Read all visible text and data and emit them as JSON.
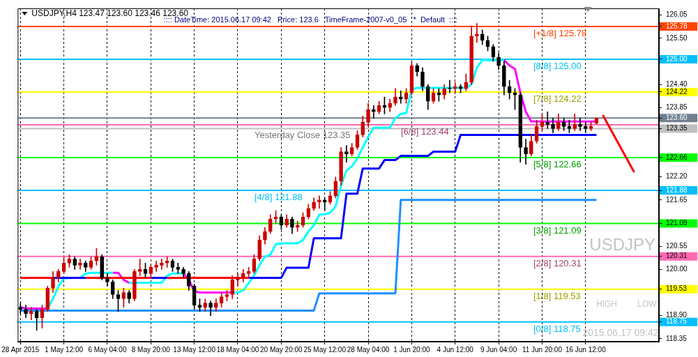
{
  "chart_data": {
    "type": "candlestick",
    "title": "USDJPY,H4 123.47 123.60 123.46 123.60",
    "subtitle": ":::: DateTime: 2015.06.17 09:42   Price: 123.6   TimeFrame-2007-v0_05   *  Default  ::::",
    "categories": [
      "28 Apr 2015",
      null,
      null,
      null,
      null,
      null,
      null,
      null,
      "1 May 12:00",
      null,
      null,
      null,
      null,
      null,
      null,
      null,
      "6 May 04:00",
      null,
      null,
      null,
      null,
      null,
      null,
      null,
      "8 May 20:00",
      null,
      null,
      null,
      null,
      null,
      null,
      null,
      "13 May 12:00",
      null,
      null,
      null,
      null,
      null,
      null,
      null,
      "18 May 04:00",
      null,
      null,
      null,
      null,
      null,
      null,
      null,
      "20 May 20:00",
      null,
      null,
      null,
      null,
      null,
      null,
      null,
      "25 May 12:00",
      null,
      null,
      null,
      null,
      null,
      null,
      null,
      "28 May 04:00",
      null,
      null,
      null,
      null,
      null,
      null,
      null,
      "1 Jun 20:00",
      null,
      null,
      null,
      null,
      null,
      null,
      null,
      "4 Jun 12:00",
      null,
      null,
      null,
      null,
      null,
      null,
      null,
      "9 Jun 04:00",
      null,
      null,
      null,
      null,
      null,
      null,
      null,
      "11 Jun 20:00",
      null,
      null,
      null,
      null,
      null,
      null,
      null,
      "16 Jun 12:00",
      null,
      null,
      null,
      null,
      null,
      null,
      null,
      null,
      null,
      null,
      null,
      null,
      null
    ],
    "ohlc": [
      [
        119.1,
        119.2,
        118.95,
        119.05
      ],
      [
        119.05,
        119.15,
        118.85,
        118.95
      ],
      [
        118.95,
        119.1,
        118.8,
        119.0
      ],
      [
        119.0,
        119.05,
        118.55,
        118.85
      ],
      [
        118.85,
        119.15,
        118.6,
        119.05
      ],
      [
        119.05,
        119.6,
        119.0,
        119.55
      ],
      [
        119.55,
        119.95,
        119.45,
        119.8
      ],
      [
        119.8,
        120.0,
        119.7,
        119.95
      ],
      [
        119.95,
        120.3,
        119.9,
        120.15
      ],
      [
        120.15,
        120.35,
        120.05,
        120.25
      ],
      [
        120.25,
        120.3,
        120.0,
        120.1
      ],
      [
        120.1,
        120.25,
        120.0,
        120.15
      ],
      [
        120.15,
        120.2,
        119.95,
        120.05
      ],
      [
        120.05,
        120.3,
        120.0,
        120.2
      ],
      [
        120.2,
        120.5,
        120.1,
        120.3
      ],
      [
        120.3,
        120.35,
        119.75,
        119.8
      ],
      [
        119.8,
        119.9,
        119.6,
        119.7
      ],
      [
        119.7,
        119.75,
        119.3,
        119.4
      ],
      [
        119.4,
        119.5,
        119.0,
        119.3
      ],
      [
        119.3,
        119.55,
        119.1,
        119.45
      ],
      [
        119.45,
        119.5,
        119.2,
        119.3
      ],
      [
        119.3,
        120.0,
        119.25,
        119.95
      ],
      [
        119.95,
        120.25,
        119.85,
        120.0
      ],
      [
        120.0,
        120.15,
        119.8,
        119.9
      ],
      [
        119.9,
        120.1,
        119.8,
        120.05
      ],
      [
        120.05,
        120.2,
        119.95,
        120.1
      ],
      [
        120.1,
        120.25,
        120.0,
        120.15
      ],
      [
        120.15,
        120.3,
        120.05,
        120.2
      ],
      [
        120.2,
        120.25,
        119.95,
        120.05
      ],
      [
        120.05,
        120.15,
        119.9,
        120.0
      ],
      [
        120.0,
        120.05,
        119.8,
        119.9
      ],
      [
        119.9,
        119.95,
        119.5,
        119.6
      ],
      [
        119.6,
        119.65,
        119.05,
        119.15
      ],
      [
        119.15,
        119.3,
        119.0,
        119.1
      ],
      [
        119.1,
        119.3,
        119.0,
        119.2
      ],
      [
        119.2,
        119.25,
        118.9,
        119.1
      ],
      [
        119.1,
        119.3,
        119.0,
        119.2
      ],
      [
        119.2,
        119.45,
        119.1,
        119.35
      ],
      [
        119.35,
        119.5,
        119.25,
        119.4
      ],
      [
        119.4,
        119.85,
        119.3,
        119.75
      ],
      [
        119.75,
        119.9,
        119.6,
        119.8
      ],
      [
        119.8,
        120.0,
        119.7,
        119.9
      ],
      [
        119.9,
        120.05,
        119.8,
        119.95
      ],
      [
        119.95,
        120.35,
        119.9,
        120.25
      ],
      [
        120.25,
        120.8,
        120.2,
        120.7
      ],
      [
        120.7,
        121.0,
        120.6,
        120.9
      ],
      [
        120.9,
        121.3,
        120.85,
        121.2
      ],
      [
        121.2,
        121.4,
        121.1,
        121.25
      ],
      [
        121.25,
        121.3,
        120.95,
        121.05
      ],
      [
        121.05,
        121.3,
        121.0,
        121.2
      ],
      [
        121.2,
        121.25,
        120.85,
        121.0
      ],
      [
        121.0,
        121.15,
        120.9,
        121.05
      ],
      [
        121.05,
        121.35,
        121.0,
        121.25
      ],
      [
        121.25,
        121.55,
        121.2,
        121.45
      ],
      [
        121.45,
        121.7,
        121.4,
        121.6
      ],
      [
        121.6,
        121.75,
        121.45,
        121.65
      ],
      [
        121.65,
        121.7,
        121.4,
        121.6
      ],
      [
        121.6,
        121.85,
        121.55,
        121.75
      ],
      [
        121.75,
        122.2,
        121.7,
        122.1
      ],
      [
        122.1,
        122.9,
        122.0,
        122.8
      ],
      [
        122.8,
        122.95,
        122.55,
        122.75
      ],
      [
        122.75,
        123.0,
        122.7,
        122.9
      ],
      [
        122.9,
        123.3,
        122.85,
        123.2
      ],
      [
        123.2,
        123.65,
        123.15,
        123.5
      ],
      [
        123.5,
        123.95,
        123.4,
        123.8
      ],
      [
        123.8,
        123.9,
        123.6,
        123.75
      ],
      [
        123.75,
        124.0,
        123.7,
        123.9
      ],
      [
        123.9,
        124.1,
        123.7,
        123.85
      ],
      [
        123.85,
        124.05,
        123.75,
        123.95
      ],
      [
        123.95,
        124.3,
        123.9,
        124.1
      ],
      [
        124.1,
        124.25,
        123.95,
        124.05
      ],
      [
        124.05,
        124.3,
        123.95,
        124.2
      ],
      [
        124.2,
        124.95,
        124.15,
        124.85
      ],
      [
        124.85,
        124.9,
        124.6,
        124.7
      ],
      [
        124.7,
        124.8,
        124.25,
        124.35
      ],
      [
        124.35,
        124.4,
        123.8,
        124.0
      ],
      [
        124.0,
        124.3,
        123.95,
        124.2
      ],
      [
        124.2,
        124.3,
        124.0,
        124.15
      ],
      [
        124.15,
        124.4,
        124.05,
        124.3
      ],
      [
        124.3,
        124.5,
        124.2,
        124.3
      ],
      [
        124.3,
        124.45,
        124.2,
        124.35
      ],
      [
        124.35,
        124.4,
        124.2,
        124.3
      ],
      [
        124.3,
        124.65,
        124.25,
        124.45
      ],
      [
        124.45,
        125.8,
        124.4,
        125.55
      ],
      [
        125.55,
        125.85,
        125.4,
        125.6
      ],
      [
        125.6,
        125.7,
        125.35,
        125.45
      ],
      [
        125.45,
        125.55,
        125.2,
        125.3
      ],
      [
        125.3,
        125.35,
        124.95,
        125.05
      ],
      [
        125.05,
        125.15,
        124.75,
        124.85
      ],
      [
        124.85,
        124.95,
        124.15,
        124.35
      ],
      [
        124.35,
        124.5,
        124.05,
        124.2
      ],
      [
        124.2,
        124.3,
        123.8,
        124.15
      ],
      [
        124.15,
        124.2,
        122.55,
        122.9
      ],
      [
        122.9,
        123.1,
        122.5,
        122.75
      ],
      [
        122.75,
        123.2,
        122.7,
        123.05
      ],
      [
        123.05,
        123.55,
        123.0,
        123.4
      ],
      [
        123.4,
        123.7,
        123.3,
        123.5
      ],
      [
        123.5,
        123.75,
        123.35,
        123.45
      ],
      [
        123.45,
        123.6,
        123.25,
        123.35
      ],
      [
        123.35,
        123.7,
        123.3,
        123.5
      ],
      [
        123.5,
        123.6,
        123.3,
        123.4
      ],
      [
        123.4,
        123.55,
        123.25,
        123.35
      ],
      [
        123.35,
        123.7,
        123.3,
        123.45
      ],
      [
        123.45,
        123.6,
        123.3,
        123.4
      ],
      [
        123.4,
        123.5,
        123.25,
        123.35
      ],
      [
        123.35,
        123.5,
        123.3,
        123.4
      ],
      [
        123.47,
        123.6,
        123.46,
        123.6
      ],
      null,
      null,
      null,
      null,
      null,
      null,
      null,
      null,
      null,
      null,
      null
    ],
    "colors": [
      "#000000",
      "#000000",
      "#cc0000",
      "#000000",
      "#cc0000",
      "#cc0000",
      "#cc0000",
      "#cc0000",
      "#cc0000",
      "#cc0000",
      "#000000",
      "#cc0000",
      "#000000",
      "#cc0000",
      "#cc0000",
      "#000000",
      "#000000",
      "#000000",
      "#000000",
      "#cc0000",
      "#000000",
      "#cc0000",
      "#cc0000",
      "#000000",
      "#cc0000",
      "#cc0000",
      "#cc0000",
      "#cc0000",
      "#000000",
      "#000000",
      "#000000",
      "#000000",
      "#000000",
      "#000000",
      "#cc0000",
      "#000000",
      "#cc0000",
      "#cc0000",
      "#cc0000",
      "#cc0000",
      "#cc0000",
      "#cc0000",
      "#cc0000",
      "#cc0000",
      "#cc0000",
      "#cc0000",
      "#cc0000",
      "#cc0000",
      "#000000",
      "#cc0000",
      "#000000",
      "#cc0000",
      "#cc0000",
      "#cc0000",
      "#cc0000",
      "#cc0000",
      "#000000",
      "#cc0000",
      "#cc0000",
      "#cc0000",
      "#000000",
      "#cc0000",
      "#cc0000",
      "#cc0000",
      "#cc0000",
      "#000000",
      "#cc0000",
      "#000000",
      "#cc0000",
      "#cc0000",
      "#000000",
      "#cc0000",
      "#cc0000",
      "#000000",
      "#000000",
      "#000000",
      "#cc0000",
      "#000000",
      "#cc0000",
      "#000000",
      "#cc0000",
      "#000000",
      "#cc0000",
      "#cc0000",
      "#cc0000",
      "#000000",
      "#000000",
      "#000000",
      "#000000",
      "#000000",
      "#000000",
      "#000000",
      "#000000",
      "#000000",
      "#cc0000",
      "#cc0000",
      "#cc0000",
      "#000000",
      "#000000",
      "#cc0000",
      "#000000",
      "#000000",
      "#cc0000",
      "#000000",
      "#000000",
      "#cc0000",
      "#cc0000",
      null,
      null,
      null,
      null,
      null,
      null,
      null,
      null,
      null,
      null,
      null
    ],
    "series": [
      {
        "type": "line",
        "color": "#1e90ff",
        "values": [
          119.02,
          119.02,
          119.02,
          119.02,
          119.02,
          119.02,
          119.02,
          119.02,
          119.02,
          119.02,
          119.02,
          119.02,
          119.02,
          119.02,
          119.02,
          119.02,
          119.02,
          119.02,
          119.02,
          119.02,
          119.02,
          119.02,
          119.02,
          119.02,
          119.02,
          119.02,
          119.02,
          119.02,
          119.02,
          119.02,
          119.02,
          119.02,
          119.02,
          119.02,
          119.02,
          119.02,
          119.02,
          119.02,
          119.02,
          119.02,
          119.02,
          119.02,
          119.02,
          119.02,
          119.02,
          119.02,
          119.02,
          119.02,
          119.02,
          119.02,
          119.02,
          119.02,
          119.02,
          119.02,
          119.02,
          119.43,
          119.43,
          119.43,
          119.43,
          119.43,
          119.43,
          119.43,
          119.43,
          119.43,
          119.43,
          119.43,
          119.43,
          119.43,
          119.43,
          119.43,
          121.65,
          121.65,
          121.65,
          121.65,
          121.65,
          121.65,
          121.65,
          121.65,
          121.65,
          121.65,
          121.65,
          121.65,
          121.65,
          121.65,
          121.65,
          121.65,
          121.65,
          121.65,
          121.65,
          121.65,
          121.65,
          121.65,
          121.65,
          121.65,
          121.65,
          121.65,
          121.65,
          121.65,
          121.65,
          121.65,
          121.65,
          121.65,
          121.65,
          121.65,
          121.65,
          121.65,
          121.65,
          null,
          null,
          null,
          null,
          null,
          null,
          null,
          null,
          null,
          null,
          null
        ]
      },
      {
        "type": "line",
        "color": "#0000ff",
        "values": [
          null,
          null,
          null,
          null,
          null,
          null,
          119.8,
          119.8,
          119.8,
          119.8,
          119.8,
          119.8,
          119.8,
          null,
          null,
          null,
          null,
          null,
          null,
          null,
          null,
          null,
          null,
          null,
          119.8,
          119.8,
          119.8,
          119.8,
          null,
          null,
          null,
          null,
          null,
          null,
          null,
          null,
          null,
          null,
          null,
          null,
          null,
          null,
          119.8,
          119.8,
          119.8,
          119.8,
          119.8,
          119.8,
          119.8,
          120.04,
          120.04,
          120.04,
          120.04,
          120.04,
          120.74,
          120.74,
          120.74,
          120.74,
          120.74,
          120.74,
          121.8,
          121.8,
          121.8,
          122.4,
          122.4,
          122.4,
          122.4,
          122.6,
          122.6,
          122.6,
          122.7,
          122.7,
          122.7,
          122.7,
          122.7,
          122.7,
          122.8,
          122.8,
          122.8,
          122.8,
          122.8,
          123.2,
          123.2,
          123.2,
          123.2,
          123.2,
          123.2,
          123.2,
          123.2,
          123.2,
          123.2,
          123.2,
          123.2,
          123.2,
          123.2,
          123.2,
          123.2,
          123.2,
          123.2,
          123.2,
          123.2,
          123.2,
          123.2,
          123.2,
          123.2,
          123.2,
          123.2,
          null,
          null,
          null,
          null,
          null,
          null,
          null,
          null,
          null,
          null,
          null
        ]
      },
      {
        "type": "line",
        "color": "#ff0000",
        "values": [
          119.8,
          119.8,
          119.8,
          119.8,
          119.8,
          119.8,
          119.8,
          null,
          null,
          null,
          null,
          null,
          119.8,
          119.8,
          119.8,
          119.8,
          119.8,
          119.8,
          119.8,
          119.8,
          119.8,
          119.8,
          119.8,
          119.8,
          119.8,
          null,
          null,
          119.8,
          119.8,
          119.8,
          119.8,
          119.8,
          119.8,
          119.8,
          119.8,
          119.8,
          119.8,
          119.8,
          119.8,
          119.8,
          119.8,
          119.8,
          119.8,
          null,
          null,
          null,
          null,
          null,
          null,
          null,
          null,
          null,
          null,
          null,
          null,
          null,
          null,
          null,
          null,
          null,
          null,
          null,
          null,
          null,
          null,
          null,
          null,
          null,
          null,
          null,
          null,
          null,
          null,
          null,
          null,
          null,
          null,
          null,
          null,
          null,
          null,
          null,
          null,
          null,
          null,
          null,
          null,
          null,
          null,
          null,
          null,
          null,
          null,
          null,
          null,
          null,
          null,
          null,
          null,
          null,
          null,
          null,
          null,
          null,
          null,
          null,
          null,
          null,
          null,
          null,
          null,
          null,
          null,
          null,
          null,
          null,
          null,
          null
        ]
      },
      {
        "type": "line",
        "color": "#00ffff",
        "values": [
          null,
          null,
          null,
          null,
          null,
          119.07,
          119.3,
          119.6,
          119.78,
          119.8,
          119.8,
          119.8,
          119.9,
          119.92,
          119.92,
          119.92,
          119.92,
          119.92,
          null,
          null,
          119.68,
          119.68,
          119.68,
          119.68,
          119.68,
          119.68,
          119.68,
          119.85,
          119.9,
          119.9,
          119.9,
          null,
          null,
          null,
          null,
          null,
          null,
          null,
          null,
          119.45,
          119.45,
          119.5,
          119.67,
          119.85,
          120.1,
          120.3,
          120.35,
          120.6,
          120.62,
          120.62,
          120.62,
          120.62,
          120.7,
          120.9,
          121.05,
          121.3,
          121.31,
          121.35,
          121.5,
          122.0,
          122.35,
          122.45,
          122.64,
          122.9,
          123.15,
          123.37,
          123.37,
          123.37,
          123.37,
          123.6,
          123.7,
          123.72,
          124.28,
          124.32,
          124.32,
          124.32,
          124.32,
          124.32,
          124.32,
          124.32,
          124.32,
          124.32,
          124.32,
          124.4,
          124.8,
          124.98,
          124.98,
          124.98,
          124.98,
          124.98,
          null,
          null,
          null,
          null,
          null,
          null,
          null,
          null,
          null,
          null,
          null,
          null,
          null,
          null,
          null,
          null,
          null,
          null,
          null,
          null,
          null,
          null,
          null,
          null,
          null,
          null,
          null,
          null
        ]
      },
      {
        "type": "line",
        "color": "#ff00ff",
        "values": [
          119.1,
          119.07,
          119.07,
          119.07,
          119.07,
          119.07,
          null,
          null,
          null,
          null,
          null,
          null,
          null,
          null,
          null,
          null,
          null,
          119.92,
          119.92,
          119.75,
          119.68,
          null,
          null,
          null,
          null,
          null,
          null,
          null,
          null,
          null,
          119.9,
          119.75,
          119.48,
          119.45,
          119.45,
          119.45,
          119.45,
          119.45,
          119.45,
          119.45,
          null,
          null,
          null,
          null,
          null,
          null,
          null,
          null,
          null,
          null,
          null,
          null,
          null,
          null,
          null,
          null,
          null,
          null,
          null,
          null,
          null,
          null,
          null,
          null,
          null,
          null,
          null,
          null,
          null,
          null,
          null,
          null,
          null,
          null,
          null,
          null,
          null,
          null,
          null,
          null,
          null,
          null,
          null,
          null,
          null,
          null,
          null,
          null,
          null,
          124.98,
          124.85,
          124.77,
          124.2,
          123.75,
          123.52,
          123.52,
          123.52,
          123.52,
          123.52,
          123.52,
          123.52,
          123.52,
          123.52,
          123.52,
          123.52,
          123.52,
          123.52,
          null,
          null,
          null,
          null,
          null,
          null,
          null,
          null,
          null,
          null,
          null
        ]
      }
    ],
    "ylim": [
      118.28,
      126.21
    ],
    "yticks": [
      126.05,
      {
        "value": 125.5,
        "label": "125.50"
      },
      {
        "value": 124.4,
        "label": "124.40"
      },
      123.85,
      {
        "value": 122.2,
        "label": "122.20"
      },
      121.65,
      120.55,
      {
        "value": 120,
        "label": "120.00"
      },
      {
        "value": 118.9,
        "label": "118.90"
      },
      118.35,
      125.78,
      {
        "value": 125.0,
        "label": "125.00"
      },
      124.22,
      {
        "value": 123.6,
        "label": "123.60"
      },
      123.35,
      122.66,
      121.88,
      121.09,
      120.31,
      119.53,
      118.75
    ],
    "grid": "x",
    "ref_lines": [
      {
        "axis": "y",
        "value": 125.78,
        "label": "[+1/8] 125.78",
        "color": "#ff4500"
      },
      {
        "axis": "y",
        "value": 125.0,
        "label": "[8/8] 125.00",
        "color": "#00bfff"
      },
      {
        "axis": "y",
        "value": 124.22,
        "label": "[7/8] 124.22",
        "color": "#ffff00"
      },
      {
        "axis": "y",
        "value": 123.6,
        "label": null,
        "color": "#708090"
      },
      {
        "axis": "y",
        "value": 123.44,
        "label": "[6/8] 123.44",
        "color": "#ff69b4"
      },
      {
        "axis": "y",
        "value": 123.35,
        "label": "Yesterday Close 123.35",
        "color": "#c0c0c0"
      },
      {
        "axis": "y",
        "value": 122.66,
        "label": "[5/8] 122.66",
        "color": "#00ff00"
      },
      {
        "axis": "y",
        "value": 121.88,
        "label": "[4/8] 121.88",
        "color": "#00bfff"
      },
      {
        "axis": "y",
        "value": 121.09,
        "label": "[3/8] 121.09",
        "color": "#00ff00"
      },
      {
        "axis": "y",
        "value": 120.31,
        "label": "[2/8] 120.31",
        "color": "#ff69b4"
      },
      {
        "axis": "y",
        "value": 119.53,
        "label": "[1/8] 119.53",
        "color": "#ffff00"
      },
      {
        "axis": "y",
        "value": 118.75,
        "label": "[0/8] 118.75",
        "color": "#00bfff"
      }
    ],
    "annotations": [
      "USDJPY",
      "HIGH",
      "LOW",
      "2015.06.17 09:42"
    ]
  }
}
